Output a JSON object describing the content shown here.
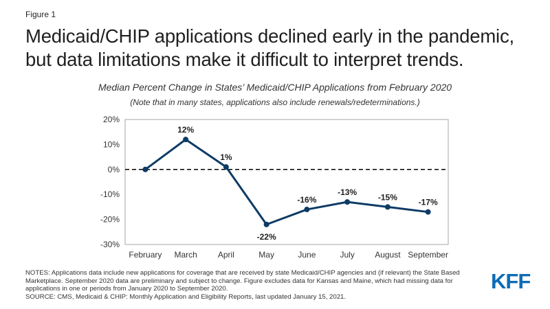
{
  "figure_label": "Figure 1",
  "headline": "Medicaid/CHIP applications declined early in the pandemic, but data limitations make it difficult to interpret trends.",
  "notes": "NOTES: Applications data include new applications for coverage that are received by state Medicaid/CHIP agencies and (if relevant) the State Based Marketplace. September 2020 data are preliminary and subject to change. Figure excludes data for Kansas and Maine, which had missing data for applications in one or periods from January 2020 to September 2020.",
  "source": "SOURCE: CMS, Medicaid & CHIP: Monthly Application and Eligibility Reports, last updated January 15, 2021.",
  "logo_text": "KFF",
  "colors": {
    "series": "#0d3b66",
    "logo": "#0d6cb6"
  },
  "chart_data": {
    "type": "line",
    "title": "Median Percent Change in States’ Medicaid/CHIP Applications from February 2020",
    "subtitle": "(Note that in many states, applications also include renewals/redeterminations.)",
    "xlabel": "",
    "ylabel": "",
    "categories": [
      "February",
      "March",
      "April",
      "May",
      "June",
      "July",
      "August",
      "September"
    ],
    "values": [
      0,
      12,
      1,
      -22,
      -16,
      -13,
      -15,
      -17
    ],
    "data_labels": [
      "",
      "12%",
      "1%",
      "-22%",
      "-16%",
      "-13%",
      "-15%",
      "-17%"
    ],
    "yticks": [
      20,
      10,
      0,
      -10,
      -20,
      -30
    ],
    "ytick_labels": [
      "20%",
      "10%",
      "0%",
      "-10%",
      "-20%",
      "-30%"
    ],
    "ylim": [
      -30,
      20
    ],
    "zero_line": "dashed",
    "grid": false,
    "legend": "none"
  }
}
